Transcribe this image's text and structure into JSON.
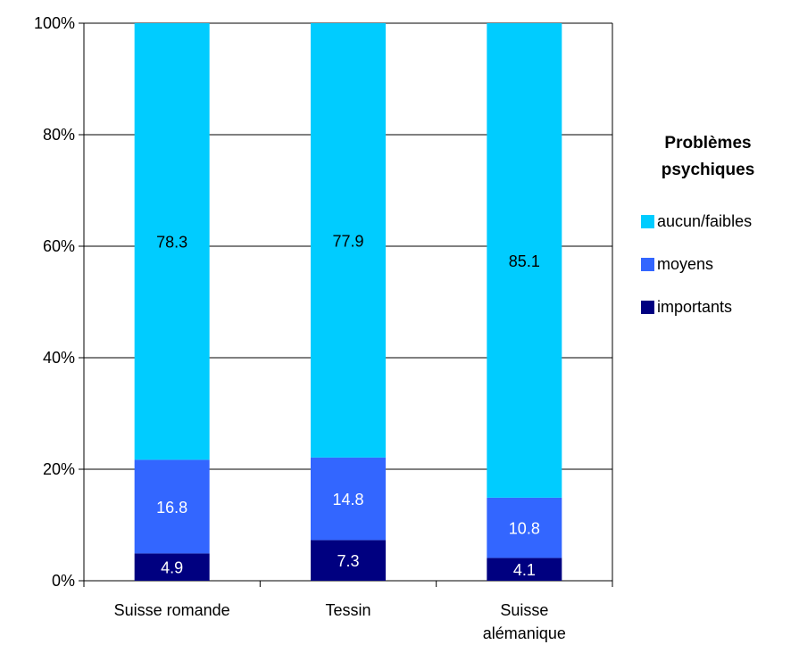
{
  "chart_data": {
    "type": "bar",
    "stacked": true,
    "categories": [
      [
        "Suisse romande"
      ],
      [
        "Tessin"
      ],
      [
        "Suisse",
        "alémanique"
      ]
    ],
    "series": [
      {
        "name": "importants",
        "values": [
          4.9,
          7.3,
          4.1
        ],
        "color": "#000080",
        "label_color": "#ffffff"
      },
      {
        "name": "moyens",
        "values": [
          16.8,
          14.8,
          10.8
        ],
        "color": "#3366ff",
        "label_color": "#ffffff"
      },
      {
        "name": "aucun/faibles",
        "values": [
          78.3,
          77.9,
          85.1
        ],
        "color": "#00ccff",
        "label_color": "#000000"
      }
    ],
    "ylim": [
      0,
      100
    ],
    "yticks": [
      "0%",
      "20%",
      "40%",
      "60%",
      "80%",
      "100%"
    ],
    "grid": true,
    "legend": {
      "title": [
        "Problèmes",
        "psychiques"
      ],
      "placement": "right",
      "order": [
        "aucun/faibles",
        "moyens",
        "importants"
      ]
    },
    "title": "",
    "xlabel": "",
    "ylabel": ""
  }
}
